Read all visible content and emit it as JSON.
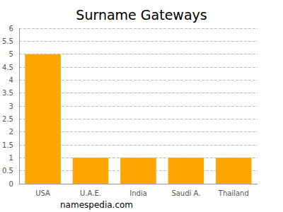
{
  "chart_data": {
    "type": "bar",
    "title": "Surname Gateways",
    "categories": [
      "USA",
      "U.A.E.",
      "India",
      "Saudi A.",
      "Thailand"
    ],
    "values": [
      5,
      1,
      1,
      1,
      1
    ],
    "color": "#ffa500",
    "ylim": [
      0,
      6
    ],
    "yticks": [
      0,
      0.5,
      1,
      1.5,
      2,
      2.5,
      3,
      3.5,
      4,
      4.5,
      5,
      5.5,
      6
    ],
    "grid": true,
    "annotation": "namespedia.com"
  }
}
